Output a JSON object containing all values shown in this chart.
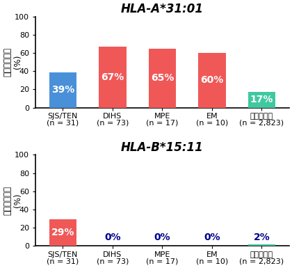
{
  "categories_line1": [
    "SJS/TEN",
    "DIHS",
    "MPE",
    "EM",
    "日本人集団"
  ],
  "categories_line2": [
    "(n = 31)",
    "(n = 73)",
    "(n = 17)",
    "(n = 10)",
    "(n = 2,823)"
  ],
  "chart1": {
    "title": "HLA-A*31:01",
    "values": [
      39,
      67,
      65,
      60,
      17
    ],
    "colors": [
      "#4a90d9",
      "#f05858",
      "#f05858",
      "#f05858",
      "#40c8a0"
    ],
    "labels": [
      "39%",
      "67%",
      "65%",
      "60%",
      "17%"
    ],
    "label_colors": [
      "white",
      "white",
      "white",
      "white",
      "white"
    ],
    "label_inside": [
      true,
      true,
      true,
      true,
      true
    ]
  },
  "chart2": {
    "title": "HLA-B*15:11",
    "values": [
      29,
      0,
      0,
      0,
      2
    ],
    "colors": [
      "#f05858",
      null,
      null,
      null,
      "#40c8a0"
    ],
    "labels": [
      "29%",
      "0%",
      "0%",
      "0%",
      "2%"
    ],
    "label_colors": [
      "white",
      "#00008b",
      "#00008b",
      "#00008b",
      "#00008b"
    ],
    "label_inside": [
      true,
      false,
      false,
      false,
      false
    ]
  },
  "ylabel": "アレル保有率\n(%)",
  "ylim": [
    0,
    100
  ],
  "yticks": [
    0,
    20,
    40,
    60,
    80,
    100
  ],
  "bar_width": 0.55,
  "title_fontsize": 12,
  "label_fontsize": 10,
  "tick_fontsize": 8,
  "ylabel_fontsize": 8.5,
  "xtick_fontsize": 8
}
